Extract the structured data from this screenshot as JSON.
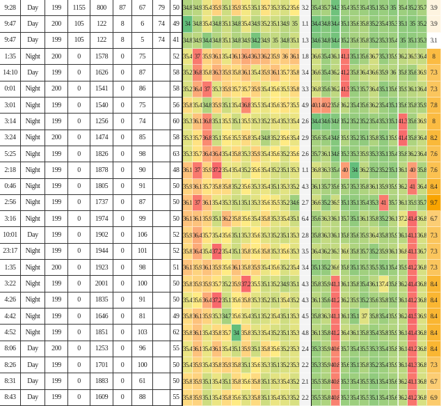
{
  "table": {
    "rows": [
      {
        "cells": [
          "9:28",
          "Day",
          199,
          1155,
          800,
          87,
          67,
          79,
          50
        ],
        "a": [
          34.8,
          34.9,
          35.4,
          35.9,
          35.1,
          35.9,
          35.5,
          35.1,
          35.7,
          35.3,
          35.2,
          35.6
        ],
        "g": 3.2,
        "b": [
          35.4,
          35.7,
          34.3,
          35.4,
          35.5,
          35.4,
          35.1,
          35.3,
          35.0,
          35.4,
          35.2,
          35.7
        ],
        "o": 3.9
      },
      {
        "cells": [
          "9:47",
          "Day",
          200,
          105,
          122,
          8,
          6,
          74,
          49
        ],
        "a": [
          34,
          34.8,
          35.4,
          34.8,
          35.1,
          34.8,
          35.4,
          34.9,
          35.2,
          35.1,
          34.9,
          35.0
        ],
        "g": 1.1,
        "b": [
          34.4,
          34.8,
          34.4,
          35.1,
          35.6,
          35.8,
          35.2,
          35.4,
          35.3,
          35.1,
          35.0,
          35.2
        ],
        "o": 3.9
      },
      {
        "cells": [
          "9:47",
          "Day",
          199,
          105,
          122,
          8,
          5,
          74,
          41
        ],
        "a": [
          34.8,
          34.9,
          34.4,
          34.8,
          35.1,
          34.8,
          34.9,
          34.2,
          34.9,
          35.0,
          34.8,
          35.1
        ],
        "g": 1.3,
        "b": [
          34.6,
          34.8,
          34.4,
          35.2,
          35.6,
          35.8,
          35.2,
          35.3,
          35.4,
          35.0,
          35.1,
          35.3
        ],
        "o": 3.1
      },
      {
        "cells": [
          "1:35",
          "Night",
          200,
          0,
          1578,
          0,
          75,
          null,
          52
        ],
        "a": [
          35.4,
          37,
          35.9,
          36.1,
          35.4,
          36.1,
          36.4,
          36.3,
          36.2,
          35.9,
          36.0,
          36.1
        ],
        "g": 1.8,
        "b": [
          36.6,
          35.4,
          36.1,
          41.1,
          35.1,
          35.6,
          36.7,
          35.3,
          35.9,
          36.2,
          36.5,
          36.4
        ],
        "o": 8
      },
      {
        "cells": [
          "14:10",
          "Day",
          199,
          0,
          1626,
          0,
          87,
          null,
          58
        ],
        "a": [
          35.2,
          36.8,
          35.8,
          36.3,
          35.9,
          35.8,
          36.1,
          35.4,
          35.9,
          36.1,
          35.7,
          35.8
        ],
        "g": 3.4,
        "b": [
          36.6,
          35.4,
          36.2,
          41.2,
          35.8,
          36.4,
          36.6,
          35.9,
          36.0,
          35.8,
          35.6,
          36.9
        ],
        "o": 7.3
      },
      {
        "cells": [
          "0:01",
          "Night",
          200,
          0,
          1541,
          0,
          86,
          null,
          58
        ],
        "a": [
          35.2,
          36.4,
          37,
          35.3,
          35.9,
          35.7,
          35.7,
          35.9,
          35.4,
          35.6,
          35.5,
          35.8
        ],
        "g": 3.3,
        "b": [
          36.8,
          35.6,
          36.2,
          41.3,
          35.3,
          35.7,
          36.4,
          35.1,
          35.6,
          35.9,
          36.1,
          36.4
        ],
        "o": 7.3
      },
      {
        "cells": [
          "3:01",
          "Night",
          199,
          0,
          1540,
          0,
          75,
          null,
          56
        ],
        "a": [
          35.8,
          35.4,
          34.8,
          35.9,
          35.1,
          35.4,
          36.8,
          35.5,
          35.4,
          35.6,
          35.7,
          35.5
        ],
        "g": 4.9,
        "b": [
          40.1,
          40.2,
          35.8,
          36.2,
          35.4,
          35.6,
          36.2,
          35.4,
          35.1,
          35.6,
          35.8,
          35.9
        ],
        "o": 7.8
      },
      {
        "cells": [
          "3:14",
          "Night",
          199,
          0,
          1256,
          0,
          74,
          null,
          60
        ],
        "a": [
          35.3,
          36.1,
          36.8,
          35.1,
          35.5,
          35.1,
          35.5,
          35.3,
          35.2,
          35.4,
          35.3,
          35.4
        ],
        "g": 2.6,
        "b": [
          34.4,
          34.6,
          34.8,
          35.2,
          35.2,
          35.2,
          35.4,
          35.3,
          35.1,
          41.3,
          35.6,
          36.9
        ],
        "o": 8
      },
      {
        "cells": [
          "3:24",
          "Night",
          200,
          0,
          1474,
          0,
          85,
          null,
          58
        ],
        "a": [
          35.3,
          35.7,
          36.8,
          35.1,
          35.6,
          35.5,
          35.8,
          35.4,
          34.8,
          35.2,
          35.6,
          35.4
        ],
        "g": 2.9,
        "b": [
          35.6,
          35.4,
          34.8,
          35.9,
          35.2,
          35.1,
          35.8,
          35.1,
          35.9,
          41.4,
          35.8,
          36.4
        ],
        "o": 8.2
      },
      {
        "cells": [
          "5:25",
          "Night",
          199,
          0,
          1826,
          0,
          98,
          null,
          63
        ],
        "a": [
          35.3,
          35.7,
          36.4,
          36.4,
          35.4,
          35.8,
          35.3,
          35.9,
          35.4,
          35.6,
          35.2,
          35.6
        ],
        "g": 2.6,
        "b": [
          35.7,
          36.1,
          34.8,
          35.3,
          35.3,
          35.9,
          35.3,
          35.1,
          35.4,
          35.8,
          36.2,
          36.4
        ],
        "o": 7.6
      },
      {
        "cells": [
          "2:18",
          "Night",
          199,
          0,
          1878,
          0,
          90,
          null,
          48
        ],
        "a": [
          36.1,
          37,
          35.9,
          37.2,
          35.4,
          35.4,
          35.2,
          35.6,
          35.4,
          35.2,
          35.1,
          35.3
        ],
        "g": 1.1,
        "b": [
          36.8,
          36.3,
          35.4,
          40,
          34,
          36.2,
          35.2,
          35.2,
          35.1,
          36.1,
          40,
          35.8
        ],
        "o": 7.6
      },
      {
        "cells": [
          "0:46",
          "Night",
          199,
          0,
          1805,
          0,
          91,
          null,
          50
        ],
        "a": [
          35.9,
          36.1,
          35.7,
          35.8,
          35.8,
          35.2,
          35.6,
          35.3,
          35.4,
          35.1,
          35.3,
          35.2
        ],
        "g": 4.3,
        "b": [
          36.1,
          35.7,
          35.6,
          35.7,
          35.3,
          35.8,
          36.1,
          35.9,
          35.9,
          36.2,
          41,
          36.4
        ],
        "o": 8.4
      },
      {
        "cells": [
          "2:56",
          "Night",
          199,
          0,
          1737,
          0,
          87,
          null,
          50
        ],
        "a": [
          36.1,
          37,
          36.1,
          35.4,
          35.3,
          35.1,
          35.1,
          35.3,
          35.6,
          35.5,
          35.2,
          34.6
        ],
        "g": 2.7,
        "b": [
          36.6,
          35.2,
          36.5,
          35.1,
          35.1,
          35.4,
          35.3,
          41,
          35.7,
          36.1,
          35.9,
          35.7
        ],
        "o": 9.7
      },
      {
        "cells": [
          "3:16",
          "Night",
          199,
          0,
          1974,
          0,
          99,
          null,
          50
        ],
        "a": [
          36.1,
          36.1,
          35.9,
          35.1,
          36.2,
          35.8,
          35.6,
          35.4,
          35.8,
          35.3,
          35.4,
          35.1
        ],
        "g": 6.4,
        "b": [
          35.6,
          36.3,
          36.1,
          35.7,
          35.1,
          36.1,
          35.8,
          35.2,
          36.1,
          37.2,
          41.4,
          36.8
        ],
        "o": 6.7
      },
      {
        "cells": [
          "10:01",
          "Day",
          199,
          0,
          1902,
          0,
          106,
          null,
          52
        ],
        "a": [
          35.9,
          36.4,
          35.7,
          35.4,
          35.6,
          35.1,
          35.3,
          35.6,
          35.3,
          35.2,
          35.1,
          35.3
        ],
        "g": 2.8,
        "b": [
          35.8,
          36.3,
          36.1,
          35.8,
          35.6,
          35.9,
          36.4,
          35.8,
          35.9,
          36.1,
          41.1,
          36.8
        ],
        "o": 7.3
      },
      {
        "cells": [
          "23:17",
          "Night",
          199,
          0,
          1944,
          0,
          101,
          null,
          52
        ],
        "a": [
          35.8,
          36.4,
          35.4,
          37.2,
          35.4,
          35.1,
          35.8,
          35.6,
          35.8,
          35.3,
          35.6,
          35.3
        ],
        "g": 3.5,
        "b": [
          36.4,
          36.2,
          36.3,
          36.6,
          35.8,
          35.7,
          35.2,
          35.9,
          36.1,
          36.8,
          41.1,
          36.7
        ],
        "o": 7.3
      },
      {
        "cells": [
          "1:35",
          "Night",
          200,
          0,
          1923,
          0,
          98,
          null,
          51
        ],
        "a": [
          36.1,
          35.9,
          36.1,
          35.9,
          35.6,
          36.1,
          35.8,
          35.9,
          35.4,
          35.6,
          35.2,
          35.4
        ],
        "g": 3.4,
        "b": [
          35.1,
          35.2,
          36.6,
          35.8,
          35.1,
          35.5,
          35.5,
          35.1,
          35.4,
          35.9,
          41.2,
          36.8
        ],
        "o": 7.3
      },
      {
        "cells": [
          "3:22",
          "Night",
          199,
          0,
          2001,
          0,
          100,
          null,
          50
        ],
        "a": [
          35.8,
          35.9,
          35.9,
          35.7,
          35.2,
          35.9,
          37.2,
          35.5,
          35.1,
          35.2,
          34.9,
          35.1
        ],
        "g": 4.3,
        "b": [
          35.8,
          35.9,
          41.1,
          36.1,
          35.8,
          35.4,
          36.1,
          37.4,
          35.8,
          36.2,
          41.4,
          36.8
        ],
        "o": 8.4
      },
      {
        "cells": [
          "4:26",
          "Night",
          199,
          0,
          1835,
          0,
          91,
          null,
          50
        ],
        "a": [
          35.4,
          35.6,
          36.4,
          37.2,
          35.1,
          35.6,
          35.8,
          35.3,
          35.2,
          35.1,
          35.4,
          35.2
        ],
        "g": 4.3,
        "b": [
          36.1,
          35.6,
          41.2,
          36.2,
          35.9,
          35.2,
          35.6,
          35.8,
          35.5,
          36.1,
          41.2,
          36.8
        ],
        "o": 8.4
      },
      {
        "cells": [
          "4:42",
          "Night",
          199,
          0,
          1646,
          0,
          81,
          null,
          49
        ],
        "a": [
          35.8,
          36.1,
          35.9,
          35.3,
          34.7,
          35.6,
          35.4,
          35.1,
          35.2,
          35.4,
          35.1,
          35.3
        ],
        "g": 4.5,
        "b": [
          35.8,
          36.3,
          41.1,
          36.1,
          35.1,
          37,
          35.8,
          35.4,
          35.9,
          36.2,
          41.5,
          36.9
        ],
        "o": 8.4
      },
      {
        "cells": [
          "4:52",
          "Night",
          199,
          0,
          1851,
          0,
          103,
          null,
          62
        ],
        "a": [
          35.8,
          36.1,
          35.4,
          35.8,
          35.7,
          34,
          35.8,
          35.3,
          35.4,
          35.2,
          35.1,
          35.3
        ],
        "g": 4.8,
        "b": [
          36.1,
          35.8,
          41.2,
          36.4,
          36.1,
          35.8,
          35.4,
          35.8,
          35.9,
          36.1,
          41.4,
          36.8
        ],
        "o": 8.4
      },
      {
        "cells": [
          "8:06",
          "Day",
          200,
          0,
          1253,
          0,
          96,
          null,
          55
        ],
        "a": [
          35.4,
          36.1,
          35.4,
          36.1,
          35.4,
          35.1,
          35.9,
          35.1,
          35.8,
          35.6,
          35.2,
          35.3
        ],
        "g": 2.4,
        "b": [
          35.3,
          35.9,
          40.6,
          35.7,
          35.4,
          35.5,
          35.3,
          35.4,
          35.8,
          36.1,
          41.2,
          36.8
        ],
        "o": 8.4
      },
      {
        "cells": [
          "8:26",
          "Day",
          199,
          0,
          1701,
          0,
          100,
          null,
          50
        ],
        "a": [
          35.4,
          35.9,
          35.4,
          35.8,
          35.9,
          35.8,
          35.1,
          35.6,
          35.3,
          35.1,
          35.2,
          35.3
        ],
        "g": 2.2,
        "b": [
          35.3,
          35.9,
          40.8,
          35.6,
          35.1,
          35.8,
          35.2,
          35.4,
          35.9,
          36.1,
          41.3,
          36.8
        ],
        "o": 7.3
      },
      {
        "cells": [
          "8:31",
          "Day",
          199,
          0,
          1883,
          0,
          61,
          null,
          50
        ],
        "a": [
          35.8,
          35.9,
          35.1,
          35.4,
          35.1,
          35.8,
          35.6,
          35.8,
          35.1,
          35.3,
          35.4,
          35.2
        ],
        "g": 2.1,
        "b": [
          35.5,
          35.8,
          40.8,
          35.3,
          35.4,
          35.5,
          35.1,
          35.4,
          35.6,
          36.2,
          41.1,
          36.8
        ],
        "o": 6.7
      },
      {
        "cells": [
          "8:43",
          "Day",
          199,
          0,
          1609,
          0,
          88,
          null,
          55
        ],
        "a": [
          35.8,
          35.9,
          35.1,
          35.4,
          35.8,
          35.6,
          35.3,
          35.8,
          35.1,
          35.4,
          35.3,
          35.2
        ],
        "g": 2.2,
        "b": [
          35.5,
          35.8,
          40.8,
          35.3,
          35.4,
          35.5,
          35.1,
          35.4,
          35.6,
          36.2,
          41.2,
          36.8
        ],
        "o": 6.9
      }
    ]
  },
  "style": {
    "heat_colors": [
      "#63be7b",
      "#ffeb84",
      "#f8696b"
    ],
    "last_column_colors": [
      "#ffffff",
      "#f9a400"
    ]
  }
}
